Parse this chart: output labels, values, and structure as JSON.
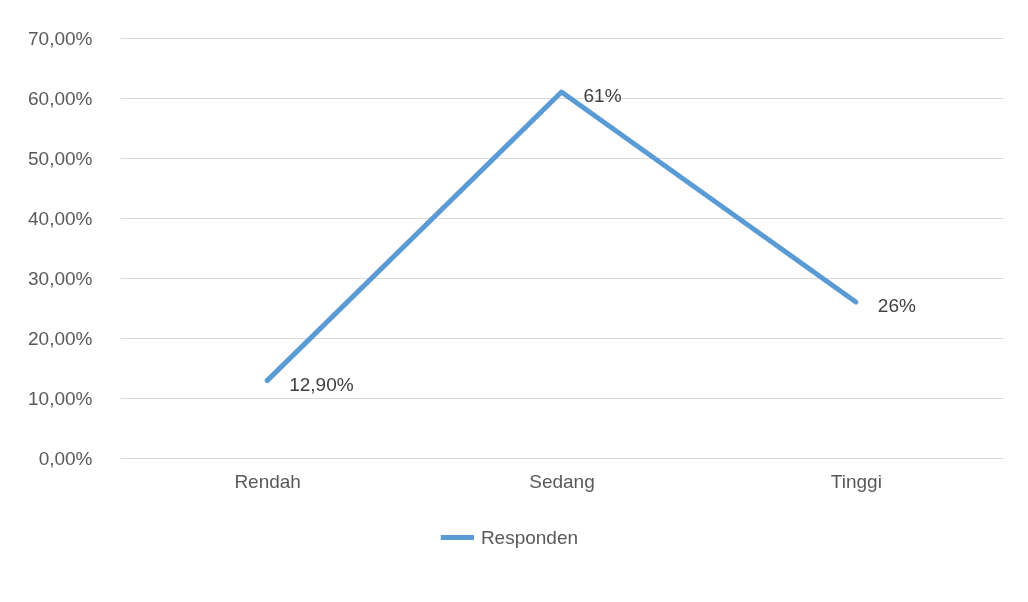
{
  "chart_data": {
    "type": "line",
    "categories": [
      "Rendah",
      "Sedang",
      "Tinggi"
    ],
    "series": [
      {
        "name": "Responden",
        "color": "#5b9bd5",
        "values": [
          12.9,
          61,
          26
        ],
        "value_labels": [
          "12,90%",
          "61%",
          "26%"
        ]
      }
    ],
    "ylim": [
      0,
      70
    ],
    "yticks": [
      {
        "value": 0,
        "label": "0,00%"
      },
      {
        "value": 10,
        "label": "10,00%"
      },
      {
        "value": 20,
        "label": "20,00%"
      },
      {
        "value": 30,
        "label": "30,00%"
      },
      {
        "value": 40,
        "label": "40,00%"
      },
      {
        "value": 50,
        "label": "50,00%"
      },
      {
        "value": 60,
        "label": "60,00%"
      },
      {
        "value": 70,
        "label": "70,00%"
      }
    ],
    "grid": "y",
    "legend": "bottom",
    "marker": "none",
    "line_style": "solid"
  }
}
